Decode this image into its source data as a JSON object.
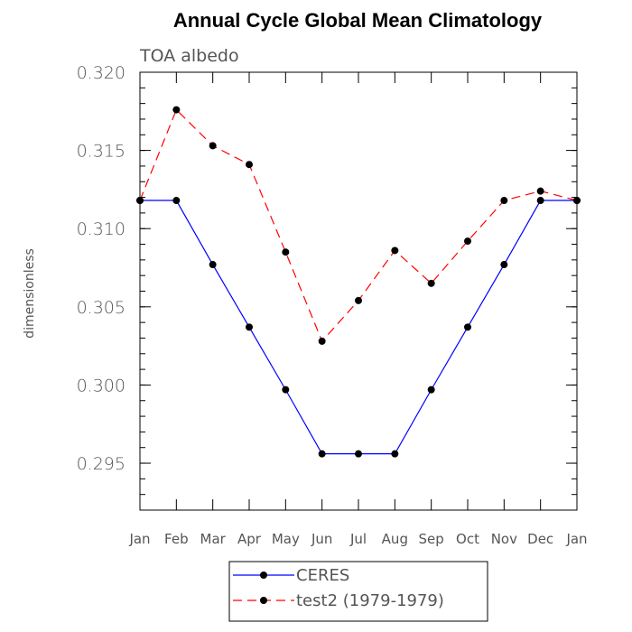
{
  "chart_data": {
    "type": "line",
    "title": "Annual Cycle Global Mean Climatology",
    "subtitle": "TOA albedo",
    "ylabel": "dimensionless",
    "xlabel": "",
    "categories": [
      "Jan",
      "Feb",
      "Mar",
      "Apr",
      "May",
      "Jun",
      "Jul",
      "Aug",
      "Sep",
      "Oct",
      "Nov",
      "Dec",
      "Jan"
    ],
    "ylim": [
      0.292,
      0.32
    ],
    "yticks": [
      0.295,
      0.3,
      0.305,
      0.31,
      0.315,
      0.32
    ],
    "ytick_labels": [
      "0.295",
      "0.300",
      "0.305",
      "0.310",
      "0.315",
      "0.320"
    ],
    "series": [
      {
        "name": "CERES",
        "color": "#0000ff",
        "dash": "solid",
        "values": [
          0.3118,
          0.3118,
          0.3077,
          0.3037,
          0.2997,
          0.2956,
          0.2956,
          0.2956,
          0.2997,
          0.3037,
          0.3077,
          0.3118,
          0.3118
        ]
      },
      {
        "name": "test2 (1979-1979)",
        "color": "#ff0000",
        "dash": "dashed",
        "values": [
          0.3118,
          0.3176,
          0.3153,
          0.3141,
          0.3085,
          0.3028,
          0.3054,
          0.3086,
          0.3065,
          0.3092,
          0.3118,
          0.3124,
          0.3118
        ]
      }
    ],
    "grid": false,
    "legend_position": "bottom-center"
  }
}
